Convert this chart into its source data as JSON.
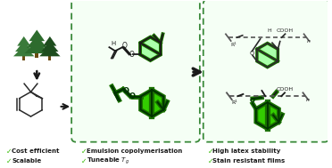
{
  "bg_color": "#ffffff",
  "fig_width": 3.72,
  "fig_height": 1.89,
  "dpi": 100,
  "green_dark": "#2d6b2d",
  "green_bright": "#33cc00",
  "green_fill": "#44dd00",
  "green_glow": "#aaffaa",
  "green_edge": "#1a7000",
  "dashed_color": "#3a8a3a",
  "text_color": "#1a1a1a",
  "check_color": "#33bb00",
  "gray_line": "#555555",
  "font_size": 5.0,
  "left_labels": [
    "Cost efficient",
    "Scalable"
  ],
  "mid_labels": [
    "Emulsion copolymerisation",
    "Tuneable $T_g$"
  ],
  "right_labels": [
    "High latex stability",
    "Stain resistant films"
  ]
}
